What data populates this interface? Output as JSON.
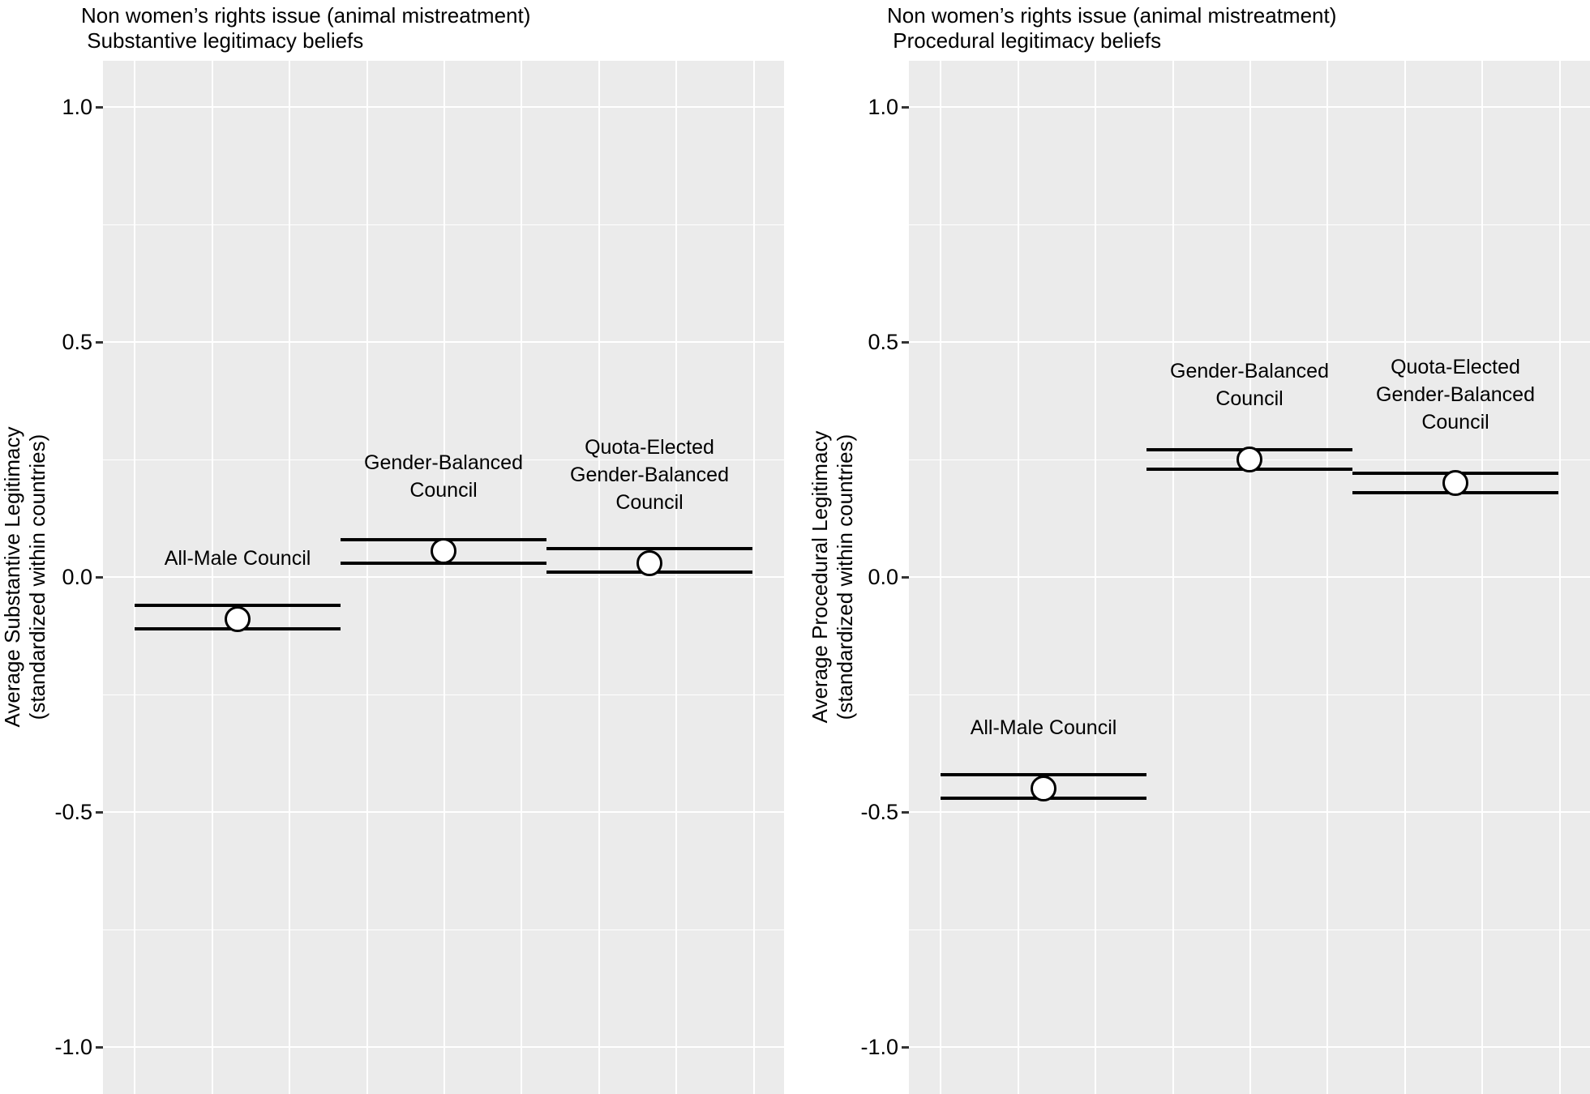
{
  "figure": {
    "background": "#FFFFFF",
    "panel_background": "#EBEBEB",
    "gridline_color": "#FFFFFF"
  },
  "colors": {
    "text": "#000000",
    "tick_mark": "#333333",
    "point_stroke": "#000000",
    "point_fill": "#FFFFFF",
    "error_bar": "#000000"
  },
  "chart_data": [
    {
      "type": "scatter",
      "title_line1": "Non women’s rights issue (animal mistreatment)",
      "title_line2": " Substantive legitimacy beliefs",
      "ylabel_line1": "Average Substantive Legitimacy",
      "ylabel_line2": "(standardized within countries)",
      "ylim": [
        -1.1,
        1.1
      ],
      "y_ticks": [
        1.0,
        0.5,
        0.0,
        -0.5,
        -1.0
      ],
      "y_tick_labels": [
        "1.0",
        "0.5",
        "0.0",
        "-0.5",
        "-1.0"
      ],
      "grid": true,
      "legend": "none",
      "categories": [
        "All-Male Council",
        "Gender-Balanced Council",
        "Quota-Elected Gender-Balanced Council"
      ],
      "points": [
        {
          "label_lines": [
            "All-Male Council"
          ],
          "estimate": -0.09,
          "ci_low": -0.11,
          "ci_high": -0.06
        },
        {
          "label_lines": [
            "Gender-Balanced",
            "Council"
          ],
          "estimate": 0.055,
          "ci_low": 0.03,
          "ci_high": 0.08
        },
        {
          "label_lines": [
            "Quota-Elected",
            "Gender-Balanced",
            "Council"
          ],
          "estimate": 0.03,
          "ci_low": 0.01,
          "ci_high": 0.06
        }
      ]
    },
    {
      "type": "scatter",
      "title_line1": "Non women’s rights issue (animal mistreatment)",
      "title_line2": " Procedural legitimacy beliefs",
      "ylabel_line1": "Average Procedural Legitimacy",
      "ylabel_line2": "(standardized within countries)",
      "ylim": [
        -1.1,
        1.1
      ],
      "y_ticks": [
        1.0,
        0.5,
        0.0,
        -0.5,
        -1.0
      ],
      "y_tick_labels": [
        "1.0",
        "0.5",
        "0.0",
        "-0.5",
        "-1.0"
      ],
      "grid": true,
      "legend": "none",
      "categories": [
        "All-Male Council",
        "Gender-Balanced Council",
        "Quota-Elected Gender-Balanced Council"
      ],
      "points": [
        {
          "label_lines": [
            "All-Male Council"
          ],
          "estimate": -0.45,
          "ci_low": -0.47,
          "ci_high": -0.42
        },
        {
          "label_lines": [
            "Gender-Balanced",
            "Council"
          ],
          "estimate": 0.25,
          "ci_low": 0.23,
          "ci_high": 0.27
        },
        {
          "label_lines": [
            "Quota-Elected",
            "Gender-Balanced",
            "Council"
          ],
          "estimate": 0.2,
          "ci_low": 0.18,
          "ci_high": 0.22
        }
      ]
    }
  ]
}
